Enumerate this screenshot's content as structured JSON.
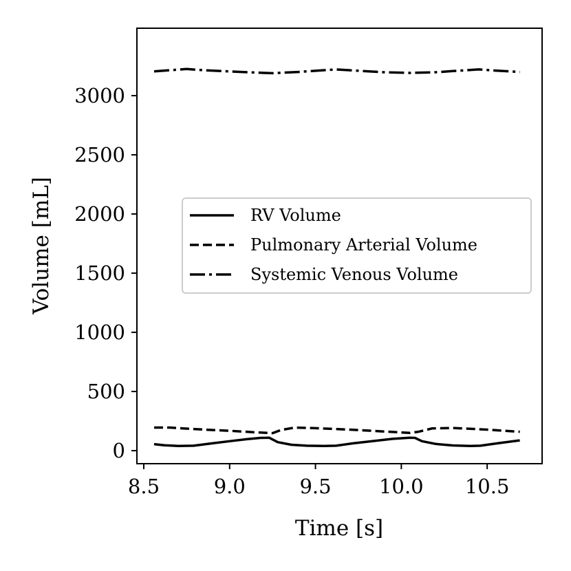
{
  "chart_data": {
    "type": "line",
    "title": "",
    "xlabel": "Time [s]",
    "ylabel": "Volume [mL]",
    "xlim": [
      8.46,
      10.82
    ],
    "ylim": [
      -110,
      3570
    ],
    "xticks": [
      8.5,
      9.0,
      9.5,
      10.0,
      10.5
    ],
    "xtick_labels": [
      "8.5",
      "9.0",
      "9.5",
      "10.0",
      "10.5"
    ],
    "yticks": [
      0,
      500,
      1000,
      1500,
      2000,
      2500,
      3000
    ],
    "ytick_labels": [
      "0",
      "500",
      "1000",
      "1500",
      "2000",
      "2500",
      "3000"
    ],
    "grid": false,
    "legend_position": "center-right",
    "series": [
      {
        "name": "RV Volume",
        "style": "solid",
        "x": [
          8.56,
          8.62,
          8.7,
          8.79,
          8.9,
          9.0,
          9.1,
          9.18,
          9.23,
          9.28,
          9.36,
          9.45,
          9.55,
          9.62,
          9.72,
          9.84,
          9.95,
          10.05,
          10.08,
          10.12,
          10.2,
          10.3,
          10.4,
          10.46,
          10.56,
          10.69
        ],
        "y": [
          55,
          45,
          40,
          42,
          62,
          80,
          97,
          108,
          110,
          72,
          50,
          42,
          40,
          42,
          62,
          82,
          100,
          110,
          108,
          80,
          57,
          44,
          40,
          42,
          62,
          87
        ]
      },
      {
        "name": "Pulmonary Arterial Volume",
        "style": "dashed",
        "x": [
          8.56,
          8.65,
          8.8,
          9.0,
          9.15,
          9.25,
          9.3,
          9.38,
          9.5,
          9.7,
          9.9,
          10.05,
          10.1,
          10.18,
          10.3,
          10.5,
          10.69
        ],
        "y": [
          195,
          195,
          182,
          168,
          155,
          148,
          175,
          195,
          190,
          178,
          162,
          150,
          160,
          188,
          192,
          178,
          160
        ]
      },
      {
        "name": "Systemic Venous Volume",
        "style": "dashdot",
        "x": [
          8.56,
          8.65,
          8.75,
          8.85,
          9.0,
          9.15,
          9.25,
          9.4,
          9.5,
          9.62,
          9.75,
          9.9,
          10.05,
          10.2,
          10.3,
          10.45,
          10.55,
          10.69
        ],
        "y": [
          3205,
          3215,
          3225,
          3215,
          3205,
          3195,
          3190,
          3200,
          3210,
          3222,
          3210,
          3198,
          3192,
          3198,
          3208,
          3222,
          3212,
          3200
        ]
      }
    ]
  }
}
